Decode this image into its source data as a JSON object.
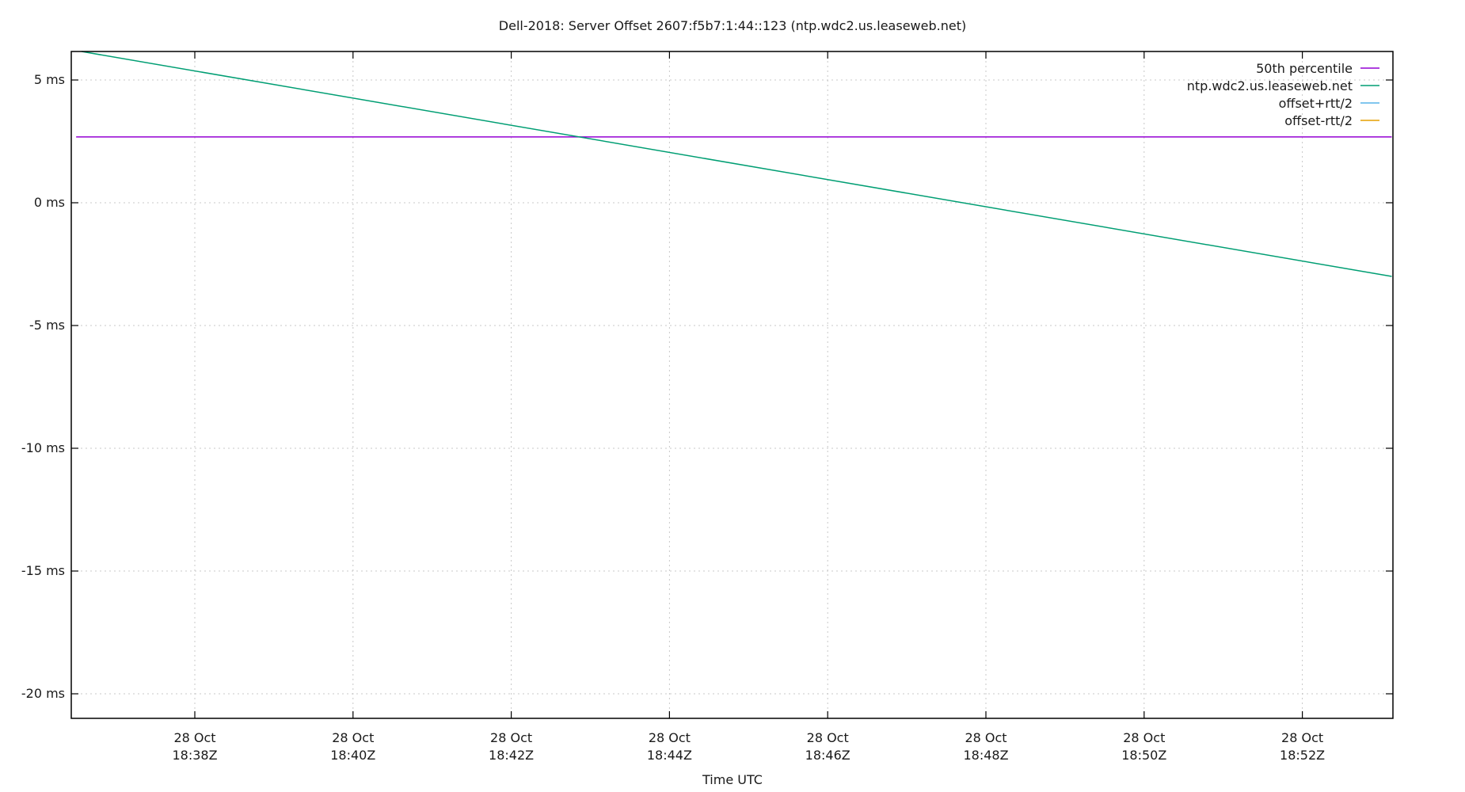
{
  "chart_data": {
    "type": "line",
    "title": "Dell-2018: Server Offset 2607:f5b7:1:44::123 (ntp.wdc2.us.leaseweb.net)",
    "xlabel": "Time UTC",
    "ylabel": "",
    "ylim": [
      -21.0,
      6.2
    ],
    "xlim": [
      "28 Oct 18:36:30Z",
      "28 Oct 18:53:08Z"
    ],
    "grid": true,
    "legend_position": "top-right inside",
    "y_ticks": [
      {
        "value": 5,
        "label": "5 ms"
      },
      {
        "value": 0,
        "label": "0 ms"
      },
      {
        "value": -5,
        "label": "-5 ms"
      },
      {
        "value": -10,
        "label": "-10 ms"
      },
      {
        "value": -15,
        "label": "-15 ms"
      },
      {
        "value": -20,
        "label": "-20 ms"
      }
    ],
    "x_ticks": [
      {
        "minute": 38,
        "line1": "28 Oct",
        "line2": "18:38Z"
      },
      {
        "minute": 40,
        "line1": "28 Oct",
        "line2": "18:40Z"
      },
      {
        "minute": 42,
        "line1": "28 Oct",
        "line2": "18:42Z"
      },
      {
        "minute": 44,
        "line1": "28 Oct",
        "line2": "18:44Z"
      },
      {
        "minute": 46,
        "line1": "28 Oct",
        "line2": "18:46Z"
      },
      {
        "minute": 48,
        "line1": "28 Oct",
        "line2": "18:48Z"
      },
      {
        "minute": 50,
        "line1": "28 Oct",
        "line2": "18:50Z"
      },
      {
        "minute": 52,
        "line1": "28 Oct",
        "line2": "18:52Z"
      }
    ],
    "series": [
      {
        "name": "50th percentile",
        "color": "#9400d3",
        "points": [
          [
            36.5,
            2.68
          ],
          [
            53.13,
            2.68
          ]
        ]
      },
      {
        "name": "ntp.wdc2.us.leaseweb.net",
        "color": "#009e73",
        "points": [
          [
            36.57,
            6.16
          ],
          [
            53.13,
            -3.0
          ]
        ]
      },
      {
        "name": "offset+rtt/2",
        "color": "#56b4e9",
        "points": []
      },
      {
        "name": "offset-rtt/2",
        "color": "#e69f00",
        "points": []
      }
    ]
  }
}
